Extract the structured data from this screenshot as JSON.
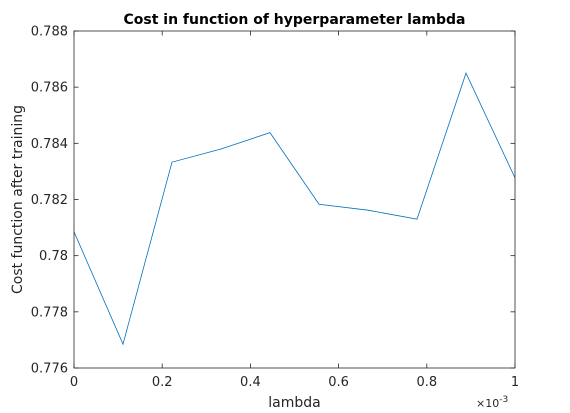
{
  "chart_data": {
    "type": "line",
    "title": "Cost in function of hyperparameter lambda",
    "xlabel": "lambda",
    "ylabel": "Cost function after training",
    "x_exponent_base": "×10",
    "x_exponent_power": "-3",
    "xlim": [
      0,
      1
    ],
    "ylim": [
      0.776,
      0.788
    ],
    "xticks": [
      0,
      0.2,
      0.4,
      0.6,
      0.8,
      1
    ],
    "xtick_labels": [
      "0",
      "0.2",
      "0.4",
      "0.6",
      "0.8",
      "1"
    ],
    "yticks": [
      0.776,
      0.778,
      0.78,
      0.782,
      0.784,
      0.786,
      0.788
    ],
    "ytick_labels": [
      "0.776",
      "0.778",
      "0.78",
      "0.782",
      "0.784",
      "0.786",
      "0.788"
    ],
    "grid": false,
    "series": [
      {
        "color": "#0072BD",
        "x": [
          0,
          0.1111,
          0.2222,
          0.3333,
          0.4444,
          0.5556,
          0.6667,
          0.7778,
          0.8889,
          1.0
        ],
        "y": [
          0.78085,
          0.77685,
          0.78333,
          0.7838,
          0.78438,
          0.78183,
          0.78162,
          0.7813,
          0.7865,
          0.78277
        ]
      }
    ]
  }
}
